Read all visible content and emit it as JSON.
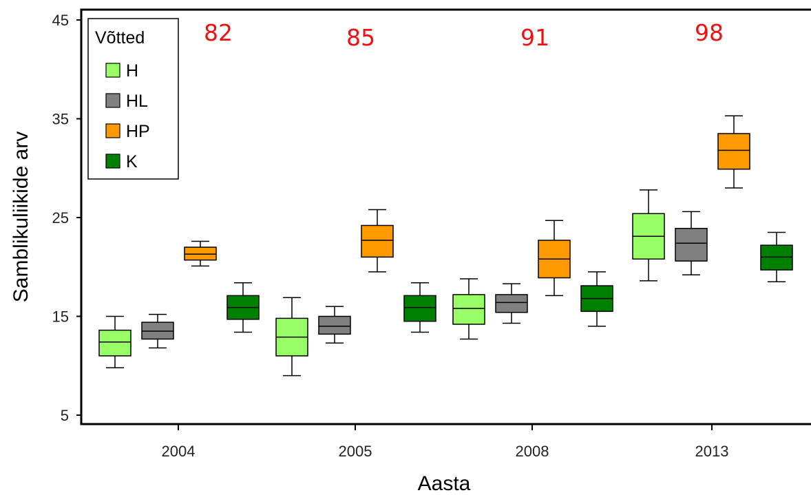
{
  "chart_data": {
    "type": "box",
    "xlabel": "Aasta",
    "ylabel": "Samblikuliikide arv",
    "ylim": [
      4,
      46
    ],
    "y_ticks": [
      "5",
      "15",
      "25",
      "35",
      "45"
    ],
    "categories": [
      "2004",
      "2005",
      "2008",
      "2013"
    ],
    "annotations": [
      "82",
      "85",
      "91",
      "98"
    ],
    "annotation_color": "#ee1111",
    "legend": {
      "title": "Võtted",
      "position": "top-left"
    },
    "series": [
      {
        "name": "H",
        "color": "#99ff66",
        "boxes": [
          {
            "min": 9.8,
            "q1": 11.0,
            "median": 12.4,
            "q3": 13.6,
            "max": 15.0
          },
          {
            "min": 9.0,
            "q1": 11.0,
            "median": 12.9,
            "q3": 14.8,
            "max": 16.9
          },
          {
            "min": 12.7,
            "q1": 14.2,
            "median": 15.8,
            "q3": 17.2,
            "max": 18.8
          },
          {
            "min": 18.6,
            "q1": 20.8,
            "median": 23.1,
            "q3": 25.4,
            "max": 27.8
          }
        ]
      },
      {
        "name": "HL",
        "color": "#808080",
        "boxes": [
          {
            "min": 11.8,
            "q1": 12.7,
            "median": 13.5,
            "q3": 14.4,
            "max": 15.2
          },
          {
            "min": 12.3,
            "q1": 13.2,
            "median": 14.0,
            "q3": 15.0,
            "max": 16.0
          },
          {
            "min": 14.3,
            "q1": 15.4,
            "median": 16.4,
            "q3": 17.2,
            "max": 18.3
          },
          {
            "min": 19.2,
            "q1": 20.6,
            "median": 22.4,
            "q3": 23.9,
            "max": 25.6
          }
        ]
      },
      {
        "name": "HP",
        "color": "#ff9900",
        "boxes": [
          {
            "min": 20.1,
            "q1": 20.7,
            "median": 21.3,
            "q3": 22.0,
            "max": 22.6
          },
          {
            "min": 19.5,
            "q1": 21.0,
            "median": 22.7,
            "q3": 24.2,
            "max": 25.8
          },
          {
            "min": 17.1,
            "q1": 18.9,
            "median": 20.8,
            "q3": 22.7,
            "max": 24.7
          },
          {
            "min": 28.0,
            "q1": 29.9,
            "median": 31.8,
            "q3": 33.5,
            "max": 35.3
          }
        ]
      },
      {
        "name": "K",
        "color": "#008000",
        "boxes": [
          {
            "min": 13.4,
            "q1": 14.7,
            "median": 15.9,
            "q3": 17.1,
            "max": 18.4
          },
          {
            "min": 13.4,
            "q1": 14.5,
            "median": 15.9,
            "q3": 17.1,
            "max": 18.4
          },
          {
            "min": 14.0,
            "q1": 15.5,
            "median": 16.8,
            "q3": 18.1,
            "max": 19.5
          },
          {
            "min": 18.5,
            "q1": 19.7,
            "median": 21.0,
            "q3": 22.2,
            "max": 23.5
          }
        ]
      }
    ]
  }
}
